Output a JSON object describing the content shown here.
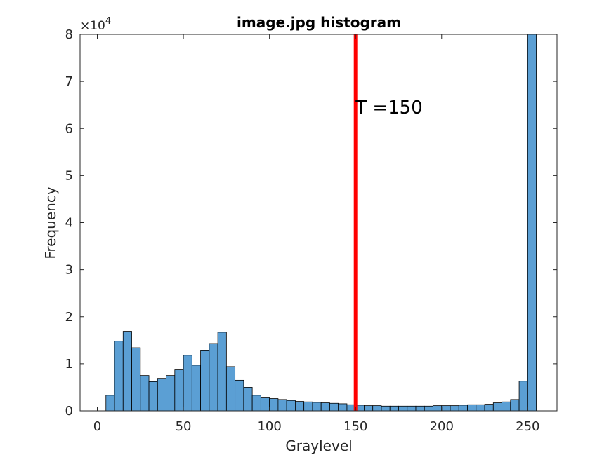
{
  "chart_data": {
    "type": "histogram",
    "title": "image.jpg histogram",
    "xlabel": "Graylevel",
    "ylabel": "Frequency",
    "xlim": [
      -10,
      267
    ],
    "ylim": [
      0,
      80000
    ],
    "x_ticks": [
      "0",
      "50",
      "100",
      "150",
      "200",
      "250"
    ],
    "x_tick_values": [
      0,
      50,
      100,
      150,
      200,
      250
    ],
    "y_ticks": [
      "0",
      "1",
      "2",
      "3",
      "4",
      "5",
      "6",
      "7",
      "8"
    ],
    "y_tick_values": [
      0,
      10000,
      20000,
      30000,
      40000,
      50000,
      60000,
      70000,
      80000
    ],
    "y_multiplier": {
      "base": "×10",
      "exponent": "4"
    },
    "bin_width": 5,
    "bin_edges_start": 5,
    "bin_centers": [
      7.5,
      12.5,
      17.5,
      22.5,
      27.5,
      32.5,
      37.5,
      42.5,
      47.5,
      52.5,
      57.5,
      62.5,
      67.5,
      72.5,
      77.5,
      82.5,
      87.5,
      92.5,
      97.5,
      102.5,
      107.5,
      112.5,
      117.5,
      122.5,
      127.5,
      132.5,
      137.5,
      142.5,
      147.5,
      152.5,
      157.5,
      162.5,
      167.5,
      172.5,
      177.5,
      182.5,
      187.5,
      192.5,
      197.5,
      202.5,
      207.5,
      212.5,
      217.5,
      222.5,
      227.5,
      232.5,
      237.5,
      242.5,
      247.5,
      252.5
    ],
    "values": [
      3300,
      14800,
      16900,
      13400,
      7500,
      6200,
      6900,
      7500,
      8700,
      11800,
      9700,
      12900,
      14300,
      16700,
      9400,
      6500,
      5000,
      3300,
      2900,
      2600,
      2400,
      2200,
      2000,
      1900,
      1800,
      1700,
      1600,
      1500,
      1300,
      1200,
      1100,
      1100,
      1000,
      1000,
      1000,
      1000,
      1000,
      1000,
      1100,
      1100,
      1100,
      1200,
      1300,
      1300,
      1400,
      1700,
      1900,
      2400,
      6300,
      80000
    ],
    "bar_color": "#5b9fd4",
    "threshold": {
      "value": 150,
      "label": "T =150",
      "color": "#ff0000"
    },
    "grid": false
  }
}
